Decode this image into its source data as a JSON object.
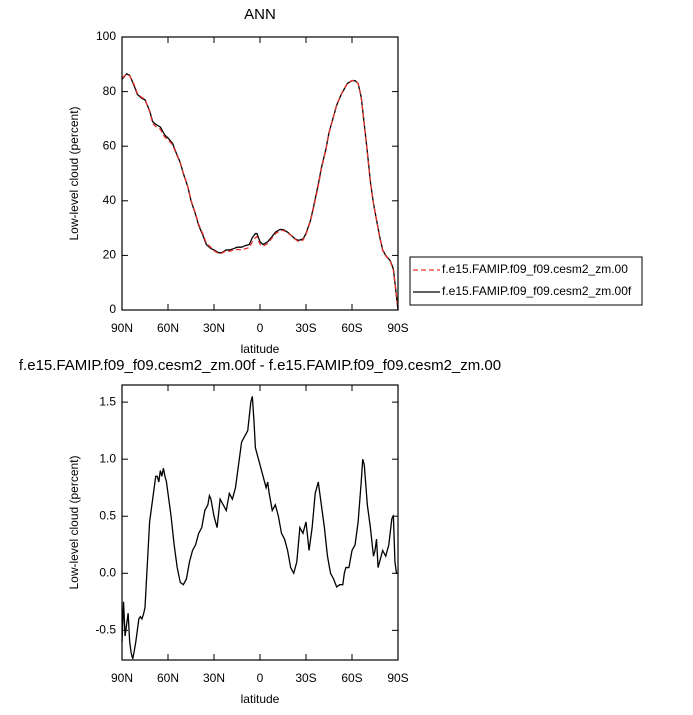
{
  "chart_data": [
    {
      "type": "line",
      "title": "ANN",
      "xlabel": "latitude",
      "ylabel": "Low-level cloud (percent)",
      "x": [
        90,
        87,
        85,
        82,
        80,
        77,
        75,
        72,
        70,
        68,
        65,
        62,
        60,
        57,
        55,
        52,
        50,
        47,
        45,
        42,
        40,
        37,
        35,
        32,
        30,
        27,
        25,
        22,
        20,
        17,
        15,
        12,
        10,
        7,
        5,
        3,
        2,
        0,
        -2,
        -5,
        -8,
        -10,
        -13,
        -15,
        -18,
        -20,
        -23,
        -25,
        -28,
        -30,
        -33,
        -35,
        -38,
        -40,
        -43,
        -45,
        -48,
        -50,
        -53,
        -55,
        -57,
        -60,
        -62,
        -64,
        -66,
        -68,
        -70,
        -72,
        -74,
        -76,
        -78,
        -80,
        -82,
        -85,
        -87,
        -88,
        -90
      ],
      "series": [
        {
          "name": "f.e15.FAMIP.f09_f09.cesm2_zm.00",
          "color": "#e8322b",
          "linestyle": "dashed",
          "values": [
            85,
            86.3,
            85.8,
            82.5,
            79.4,
            77.8,
            77.3,
            72.7,
            68.3,
            67.2,
            66.2,
            63.2,
            62.4,
            60.5,
            57.7,
            53.8,
            50.1,
            45.1,
            40.2,
            35.3,
            31.4,
            27.5,
            24.5,
            22.9,
            21.7,
            20.7,
            20.8,
            21.7,
            21.5,
            22,
            22.2,
            22,
            22.4,
            22.8,
            25,
            26.5,
            26.9,
            24.1,
            23.3,
            24.4,
            26.5,
            27.9,
            29,
            29.2,
            28.3,
            27.4,
            25.9,
            25.1,
            25.6,
            27.6,
            32.7,
            37.5,
            45.4,
            51.6,
            58.8,
            64.8,
            71,
            75.1,
            79.1,
            81.1,
            83,
            84.1,
            84,
            83,
            78,
            68,
            57.6,
            46.8,
            38.9,
            32.9,
            26.8,
            21.8,
            19.8,
            17.8,
            14.6,
            9.9,
            0
          ]
        },
        {
          "name": "f.e15.FAMIP.f09_f09.cesm2_zm.00f",
          "color": "#000000",
          "linestyle": "solid",
          "values": [
            84.5,
            86.5,
            86,
            82,
            79,
            77.5,
            77,
            73,
            69,
            68,
            67,
            64,
            63,
            61,
            58,
            54,
            50,
            45,
            40,
            35,
            31,
            27,
            24,
            22.5,
            22,
            21,
            21,
            22,
            22,
            22.5,
            23,
            23,
            23.5,
            24,
            26.5,
            28,
            28,
            25,
            24,
            25,
            27,
            28.5,
            29.5,
            29.5,
            28.5,
            27.5,
            26,
            25.5,
            26,
            28,
            33,
            38,
            46,
            52,
            59,
            65,
            71,
            75,
            79,
            81,
            83,
            84,
            84,
            83,
            78,
            68,
            58,
            47,
            39,
            33,
            27,
            22,
            20,
            18,
            15,
            10,
            0
          ]
        }
      ],
      "xlim": [
        90,
        -90
      ],
      "xticks": [
        {
          "value": 90,
          "label": "90N"
        },
        {
          "value": 60,
          "label": "60N"
        },
        {
          "value": 30,
          "label": "30N"
        },
        0,
        {
          "value": -30,
          "label": "30S"
        },
        {
          "value": -60,
          "label": "60S"
        },
        {
          "value": -90,
          "label": "90S"
        }
      ],
      "ylim": [
        0,
        100
      ],
      "yticks": [
        0,
        20,
        40,
        60,
        80,
        100
      ],
      "legend": "right"
    },
    {
      "type": "line",
      "title": "f.e15.FAMIP.f09_f09.cesm2_zm.00f - f.e15.FAMIP.f09_f09.cesm2_zm.00",
      "xlabel": "latitude",
      "ylabel": "Low-level cloud (percent)",
      "x": [
        90,
        89,
        88,
        87,
        86,
        85,
        84,
        83,
        82,
        81,
        80,
        79,
        78,
        77,
        76,
        75,
        74,
        73,
        72,
        71,
        70,
        69,
        68,
        67,
        66,
        65,
        64,
        63,
        62,
        61,
        60,
        58,
        56,
        54,
        52,
        50,
        48,
        46,
        44,
        42,
        40,
        38,
        36,
        34,
        33,
        32,
        30,
        28,
        26,
        24,
        22,
        20,
        18,
        16,
        14,
        12,
        10,
        8,
        6,
        5,
        4,
        3,
        1,
        0,
        -2,
        -4,
        -5,
        -6,
        -8,
        -10,
        -12,
        -14,
        -16,
        -18,
        -20,
        -22,
        -24,
        -26,
        -28,
        -30,
        -32,
        -34,
        -36,
        -38,
        -40,
        -42,
        -44,
        -46,
        -48,
        -50,
        -52,
        -54,
        -55,
        -56,
        -58,
        -60,
        -62,
        -64,
        -66,
        -67,
        -68,
        -70,
        -72,
        -74,
        -75,
        -76,
        -77,
        -78,
        -80,
        -82,
        -84,
        -86,
        -87,
        -88,
        -89,
        -90
      ],
      "series": [
        {
          "color": "#000000",
          "linestyle": "solid",
          "values": [
            -0.6,
            -0.25,
            -0.55,
            -0.45,
            -0.35,
            -0.6,
            -0.7,
            -0.75,
            -0.68,
            -0.6,
            -0.5,
            -0.4,
            -0.38,
            -0.4,
            -0.36,
            -0.3,
            -0.05,
            0.2,
            0.45,
            0.55,
            0.65,
            0.75,
            0.85,
            0.85,
            0.8,
            0.9,
            0.85,
            0.92,
            0.85,
            0.8,
            0.7,
            0.5,
            0.25,
            0.05,
            -0.08,
            -0.1,
            -0.05,
            0.1,
            0.2,
            0.25,
            0.35,
            0.4,
            0.55,
            0.6,
            0.68,
            0.65,
            0.5,
            0.4,
            0.65,
            0.6,
            0.55,
            0.7,
            0.65,
            0.75,
            0.95,
            1.15,
            1.2,
            1.25,
            1.5,
            1.55,
            1.35,
            1.1,
            1.0,
            0.95,
            0.85,
            0.75,
            0.8,
            0.7,
            0.55,
            0.6,
            0.5,
            0.35,
            0.3,
            0.2,
            0.05,
            0.0,
            0.1,
            0.4,
            0.35,
            0.45,
            0.2,
            0.4,
            0.7,
            0.8,
            0.6,
            0.4,
            0.15,
            0.0,
            -0.05,
            -0.12,
            -0.1,
            -0.1,
            0.0,
            0.05,
            0.05,
            0.2,
            0.25,
            0.45,
            0.8,
            1.0,
            0.95,
            0.6,
            0.4,
            0.15,
            0.2,
            0.3,
            0.05,
            0.1,
            0.2,
            0.15,
            0.25,
            0.48,
            0.5,
            0.1,
            0.0,
            0.0
          ]
        }
      ],
      "xlim": [
        90,
        -90
      ],
      "xticks": [
        {
          "value": 90,
          "label": "90N"
        },
        {
          "value": 60,
          "label": "60N"
        },
        {
          "value": 30,
          "label": "30N"
        },
        0,
        {
          "value": -30,
          "label": "30S"
        },
        {
          "value": -60,
          "label": "60S"
        },
        {
          "value": -90,
          "label": "90S"
        }
      ],
      "ylim": [
        -0.76,
        1.65
      ],
      "yticks": [
        -0.5,
        {
          "value": 0,
          "label": "0.0"
        },
        0.5,
        {
          "value": 1,
          "label": "1.0"
        },
        1.5
      ]
    }
  ]
}
